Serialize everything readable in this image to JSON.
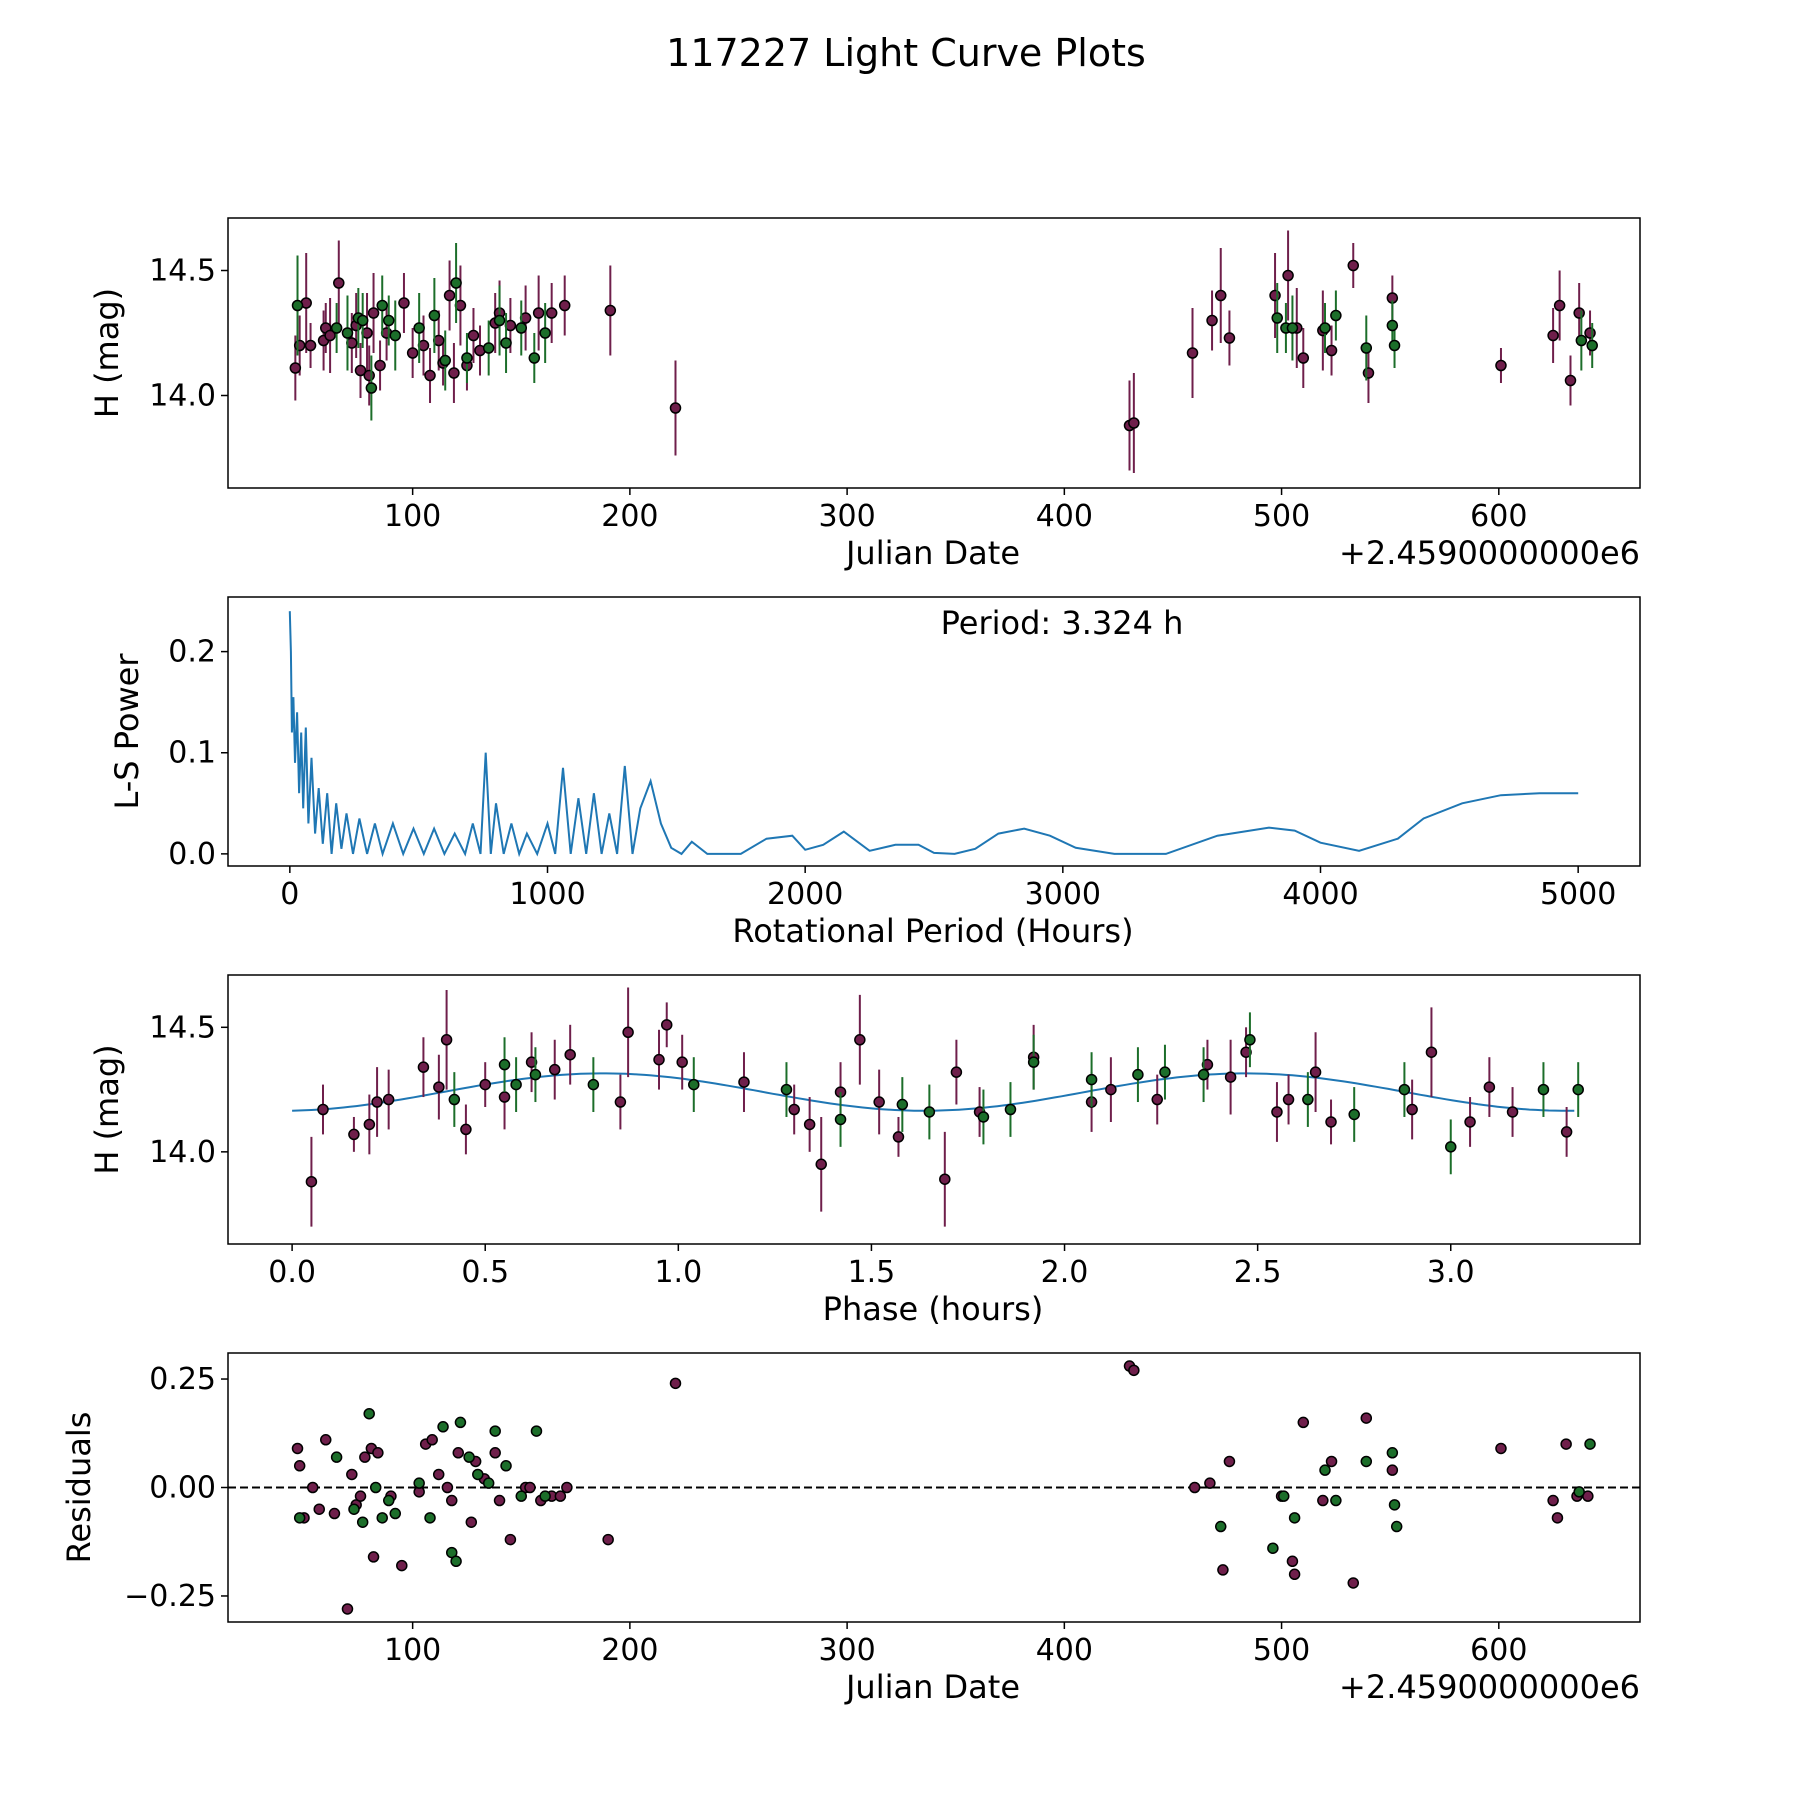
{
  "figure": {
    "title": "117227 Light Curve Plots",
    "marker_colors": {
      "band_a": "#6f1f4b",
      "band_b": "#1c6e2a",
      "curve": "#1f77b4"
    }
  },
  "chart_data": [
    {
      "type": "scatter",
      "name": "light-curve",
      "title": "",
      "xlabel": "Julian Date",
      "ylabel": "H (mag)",
      "offset_text": "+2.4590000000e6",
      "xlim": [
        15,
        665
      ],
      "ylim": [
        13.63,
        14.71
      ],
      "xticks": [
        100,
        200,
        300,
        400,
        500,
        600
      ],
      "xtick_labels": [
        "100",
        "200",
        "300",
        "400",
        "500",
        "600"
      ],
      "yticks": [
        14.0,
        14.5
      ],
      "ytick_labels": [
        "14.0",
        "14.5"
      ],
      "series": [
        {
          "name": "band-a",
          "color": "#6f1f4b",
          "x": [
            46,
            48,
            51,
            53,
            59,
            60,
            62,
            66,
            72,
            74,
            76,
            79,
            80,
            82,
            85,
            88,
            96,
            100,
            105,
            108,
            112,
            114,
            117,
            119,
            122,
            125,
            128,
            131,
            138,
            140,
            145,
            152,
            158,
            164,
            170,
            191,
            221,
            430,
            432,
            459,
            468,
            472,
            476,
            497,
            503,
            507,
            510,
            519,
            523,
            533,
            540,
            551,
            601,
            625,
            628,
            633,
            637,
            642
          ],
          "y": [
            14.11,
            14.2,
            14.37,
            14.2,
            14.22,
            14.27,
            14.24,
            14.45,
            14.21,
            14.28,
            14.1,
            14.25,
            14.08,
            14.33,
            14.12,
            14.25,
            14.37,
            14.17,
            14.2,
            14.08,
            14.22,
            14.13,
            14.4,
            14.09,
            14.36,
            14.12,
            14.24,
            14.18,
            14.29,
            14.33,
            14.28,
            14.31,
            14.33,
            14.33,
            14.36,
            14.34,
            13.95,
            13.88,
            13.89,
            14.17,
            14.3,
            14.4,
            14.23,
            14.4,
            14.48,
            14.27,
            14.15,
            14.26,
            14.18,
            14.52,
            14.09,
            14.39,
            14.12,
            14.24,
            14.36,
            14.06,
            14.33,
            14.25
          ],
          "err": [
            0.13,
            0.12,
            0.2,
            0.09,
            0.12,
            0.1,
            0.15,
            0.17,
            0.12,
            0.13,
            0.11,
            0.16,
            0.12,
            0.16,
            0.1,
            0.11,
            0.12,
            0.1,
            0.12,
            0.11,
            0.12,
            0.09,
            0.14,
            0.12,
            0.16,
            0.1,
            0.11,
            0.1,
            0.12,
            0.13,
            0.11,
            0.13,
            0.15,
            0.12,
            0.12,
            0.18,
            0.19,
            0.18,
            0.2,
            0.18,
            0.12,
            0.19,
            0.11,
            0.17,
            0.18,
            0.16,
            0.12,
            0.16,
            0.1,
            0.09,
            0.12,
            0.09,
            0.07,
            0.11,
            0.14,
            0.1,
            0.12,
            0.09
          ]
        },
        {
          "name": "band-b",
          "color": "#1c6e2a",
          "x": [
            47,
            65,
            70,
            75,
            77,
            81,
            86,
            89,
            92,
            103,
            110,
            115,
            120,
            125,
            135,
            140,
            143,
            150,
            156,
            161,
            498,
            502,
            505,
            520,
            525,
            539,
            551,
            552,
            638,
            643
          ],
          "y": [
            14.36,
            14.27,
            14.25,
            14.31,
            14.3,
            14.03,
            14.36,
            14.3,
            14.24,
            14.27,
            14.32,
            14.14,
            14.45,
            14.15,
            14.19,
            14.3,
            14.21,
            14.27,
            14.15,
            14.25,
            14.31,
            14.27,
            14.27,
            14.27,
            14.32,
            14.19,
            14.28,
            14.2,
            14.22,
            14.2
          ],
          "err": [
            0.2,
            0.1,
            0.15,
            0.12,
            0.11,
            0.13,
            0.12,
            0.1,
            0.14,
            0.14,
            0.15,
            0.12,
            0.16,
            0.1,
            0.11,
            0.14,
            0.12,
            0.11,
            0.1,
            0.12,
            0.14,
            0.1,
            0.13,
            0.1,
            0.1,
            0.13,
            0.1,
            0.09,
            0.12,
            0.09
          ]
        }
      ]
    },
    {
      "type": "line",
      "name": "periodogram",
      "title": "",
      "xlabel": "Rotational Period (Hours)",
      "ylabel": "L-S Power",
      "annotation": "Period: 3.324 h",
      "xlim": [
        -240,
        5240
      ],
      "ylim": [
        -0.012,
        0.254
      ],
      "xticks": [
        0,
        1000,
        2000,
        3000,
        4000,
        5000
      ],
      "xtick_labels": [
        "0",
        "1000",
        "2000",
        "3000",
        "4000",
        "5000"
      ],
      "yticks": [
        0.0,
        0.1,
        0.2
      ],
      "ytick_labels": [
        "0.0",
        "0.1",
        "0.2"
      ],
      "series": [
        {
          "name": "L-S power",
          "color": "#1f77b4",
          "x": [
            0,
            4,
            8,
            14,
            20,
            28,
            36,
            44,
            52,
            62,
            72,
            84,
            98,
            112,
            128,
            145,
            162,
            180,
            200,
            220,
            245,
            270,
            300,
            330,
            360,
            400,
            440,
            480,
            520,
            560,
            600,
            640,
            680,
            710,
            740,
            760,
            780,
            800,
            830,
            860,
            890,
            920,
            960,
            1000,
            1030,
            1060,
            1090,
            1120,
            1150,
            1180,
            1210,
            1240,
            1270,
            1300,
            1330,
            1360,
            1400,
            1440,
            1480,
            1520,
            1560,
            1620,
            1680,
            1750,
            1850,
            1950,
            2000,
            2070,
            2150,
            2250,
            2350,
            2440,
            2500,
            2580,
            2660,
            2750,
            2850,
            2950,
            3050,
            3200,
            3400,
            3600,
            3800,
            3900,
            4000,
            4150,
            4300,
            4400,
            4550,
            4700,
            4850,
            5000
          ],
          "y": [
            0.24,
            0.2,
            0.12,
            0.155,
            0.09,
            0.14,
            0.06,
            0.12,
            0.045,
            0.125,
            0.03,
            0.095,
            0.02,
            0.065,
            0.01,
            0.06,
            0.0,
            0.05,
            0.005,
            0.04,
            0.0,
            0.035,
            0.0,
            0.03,
            0.0,
            0.03,
            0.0,
            0.025,
            0.0,
            0.025,
            0.0,
            0.02,
            0.0,
            0.03,
            0.0,
            0.1,
            0.0,
            0.05,
            0.0,
            0.03,
            0.0,
            0.02,
            0.0,
            0.03,
            0.0,
            0.085,
            0.0,
            0.055,
            0.0,
            0.06,
            0.0,
            0.04,
            0.0,
            0.087,
            0.0,
            0.045,
            0.072,
            0.03,
            0.006,
            0.0,
            0.012,
            0.0,
            0.0,
            0.0,
            0.015,
            0.018,
            0.004,
            0.009,
            0.022,
            0.003,
            0.009,
            0.009,
            0.001,
            0.0,
            0.005,
            0.02,
            0.025,
            0.018,
            0.006,
            0.0,
            0.0,
            0.018,
            0.026,
            0.023,
            0.011,
            0.003,
            0.015,
            0.035,
            0.05,
            0.058,
            0.06,
            0.06
          ]
        }
      ]
    },
    {
      "type": "scatter",
      "name": "phase-folded",
      "title": "",
      "xlabel": "Phase (hours)",
      "ylabel": "H (mag)",
      "xlim": [
        -0.166,
        3.49
      ],
      "ylim": [
        13.63,
        14.71
      ],
      "xticks": [
        0.0,
        0.5,
        1.0,
        1.5,
        2.0,
        2.5,
        3.0
      ],
      "xtick_labels": [
        "0.0",
        "0.5",
        "1.0",
        "1.5",
        "2.0",
        "2.5",
        "3.0"
      ],
      "yticks": [
        14.0,
        14.5
      ],
      "ytick_labels": [
        "14.0",
        "14.5"
      ],
      "fit": {
        "mean": 14.24,
        "amplitude": 0.075,
        "period": 1.662,
        "phase0": 0.39,
        "xmin": 0.0,
        "xmax": 3.32
      },
      "series": [
        {
          "name": "band-a",
          "color": "#6f1f4b",
          "x": [
            0.05,
            0.08,
            0.16,
            0.2,
            0.22,
            0.25,
            0.34,
            0.38,
            0.4,
            0.45,
            0.5,
            0.55,
            0.62,
            0.68,
            0.72,
            0.85,
            0.87,
            0.95,
            0.97,
            1.01,
            1.17,
            1.3,
            1.34,
            1.37,
            1.42,
            1.47,
            1.52,
            1.57,
            1.69,
            1.72,
            1.78,
            1.92,
            2.07,
            2.12,
            2.24,
            2.37,
            2.43,
            2.47,
            2.55,
            2.58,
            2.65,
            2.69,
            2.9,
            2.95,
            3.05,
            3.1,
            3.16,
            3.3
          ],
          "y": [
            13.88,
            14.17,
            14.07,
            14.11,
            14.2,
            14.21,
            14.34,
            14.26,
            14.45,
            14.09,
            14.27,
            14.22,
            14.36,
            14.33,
            14.39,
            14.2,
            14.48,
            14.37,
            14.51,
            14.36,
            14.28,
            14.17,
            14.11,
            13.95,
            14.24,
            14.45,
            14.2,
            14.06,
            13.89,
            14.32,
            14.16,
            14.38,
            14.2,
            14.25,
            14.21,
            14.35,
            14.3,
            14.4,
            14.16,
            14.21,
            14.32,
            14.12,
            14.17,
            14.4,
            14.12,
            14.26,
            14.16,
            14.08
          ],
          "err": [
            0.18,
            0.1,
            0.07,
            0.12,
            0.14,
            0.12,
            0.12,
            0.13,
            0.2,
            0.1,
            0.09,
            0.13,
            0.12,
            0.12,
            0.12,
            0.11,
            0.18,
            0.12,
            0.09,
            0.11,
            0.12,
            0.1,
            0.11,
            0.19,
            0.12,
            0.18,
            0.13,
            0.08,
            0.19,
            0.13,
            0.1,
            0.13,
            0.12,
            0.13,
            0.1,
            0.1,
            0.15,
            0.1,
            0.12,
            0.1,
            0.16,
            0.09,
            0.12,
            0.18,
            0.1,
            0.12,
            0.1,
            0.1
          ]
        },
        {
          "name": "band-b",
          "color": "#1c6e2a",
          "x": [
            0.42,
            0.55,
            0.58,
            0.63,
            0.78,
            1.04,
            1.28,
            1.42,
            1.58,
            1.65,
            1.79,
            1.86,
            1.92,
            2.07,
            2.19,
            2.26,
            2.36,
            2.48,
            2.63,
            2.75,
            2.88,
            3.0,
            3.24,
            3.33
          ],
          "y": [
            14.21,
            14.35,
            14.27,
            14.31,
            14.27,
            14.27,
            14.25,
            14.13,
            14.19,
            14.16,
            14.14,
            14.17,
            14.36,
            14.29,
            14.31,
            14.32,
            14.31,
            14.45,
            14.21,
            14.15,
            14.25,
            14.02,
            14.25,
            14.25
          ]
        }
      ]
    },
    {
      "type": "scatter",
      "name": "residuals",
      "title": "",
      "xlabel": "Julian Date",
      "ylabel": "Residuals",
      "offset_text": "+2.4590000000e6",
      "xlim": [
        15,
        665
      ],
      "ylim": [
        -0.31,
        0.31
      ],
      "xticks": [
        100,
        200,
        300,
        400,
        500,
        600
      ],
      "xtick_labels": [
        "100",
        "200",
        "300",
        "400",
        "500",
        "600"
      ],
      "yticks": [
        -0.25,
        0.0,
        0.25
      ],
      "ytick_labels": [
        "−0.25",
        "0.00",
        "0.25"
      ],
      "reference_line": 0.0,
      "series": [
        {
          "name": "band-a",
          "color": "#6f1f4b",
          "x": [
            47,
            48,
            50,
            54,
            57,
            60,
            64,
            70,
            72,
            74,
            76,
            78,
            81,
            82,
            84,
            90,
            95,
            103,
            106,
            109,
            112,
            116,
            118,
            121,
            127,
            129,
            133,
            138,
            140,
            145,
            152,
            154,
            159,
            164,
            168,
            171,
            190,
            221,
            430,
            432,
            460,
            467,
            473,
            476,
            500,
            505,
            506,
            510,
            519,
            523,
            533,
            539,
            551,
            601,
            625,
            627,
            631,
            636,
            641
          ],
          "y": [
            0.09,
            0.05,
            -0.07,
            0.0,
            -0.05,
            0.11,
            -0.06,
            -0.28,
            0.03,
            -0.04,
            -0.02,
            0.07,
            0.09,
            -0.16,
            0.08,
            -0.02,
            -0.18,
            -0.01,
            0.1,
            0.11,
            0.03,
            0.0,
            -0.03,
            0.08,
            -0.08,
            0.06,
            0.02,
            0.08,
            -0.03,
            -0.12,
            0.0,
            0.0,
            -0.03,
            -0.02,
            -0.02,
            0.0,
            -0.12,
            0.24,
            0.28,
            0.27,
            0.0,
            0.01,
            -0.19,
            0.06,
            -0.02,
            -0.17,
            -0.2,
            0.15,
            -0.03,
            0.06,
            -0.22,
            0.16,
            0.04,
            0.09,
            -0.03,
            -0.07,
            0.1,
            -0.02,
            -0.02
          ]
        },
        {
          "name": "band-b",
          "color": "#1c6e2a",
          "x": [
            48,
            65,
            73,
            77,
            80,
            83,
            86,
            89,
            92,
            103,
            108,
            114,
            118,
            120,
            122,
            126,
            130,
            135,
            138,
            143,
            150,
            157,
            161,
            472,
            496,
            501,
            506,
            520,
            525,
            539,
            551,
            552,
            553,
            637,
            642
          ],
          "y": [
            -0.07,
            0.07,
            -0.05,
            -0.08,
            0.17,
            0.0,
            -0.07,
            -0.03,
            -0.06,
            0.01,
            -0.07,
            0.14,
            -0.15,
            -0.17,
            0.15,
            0.07,
            0.03,
            0.01,
            0.13,
            0.05,
            -0.02,
            0.13,
            -0.02,
            -0.09,
            -0.14,
            -0.02,
            -0.07,
            0.04,
            -0.03,
            0.06,
            0.08,
            -0.04,
            -0.09,
            -0.01,
            0.1
          ]
        }
      ]
    }
  ]
}
